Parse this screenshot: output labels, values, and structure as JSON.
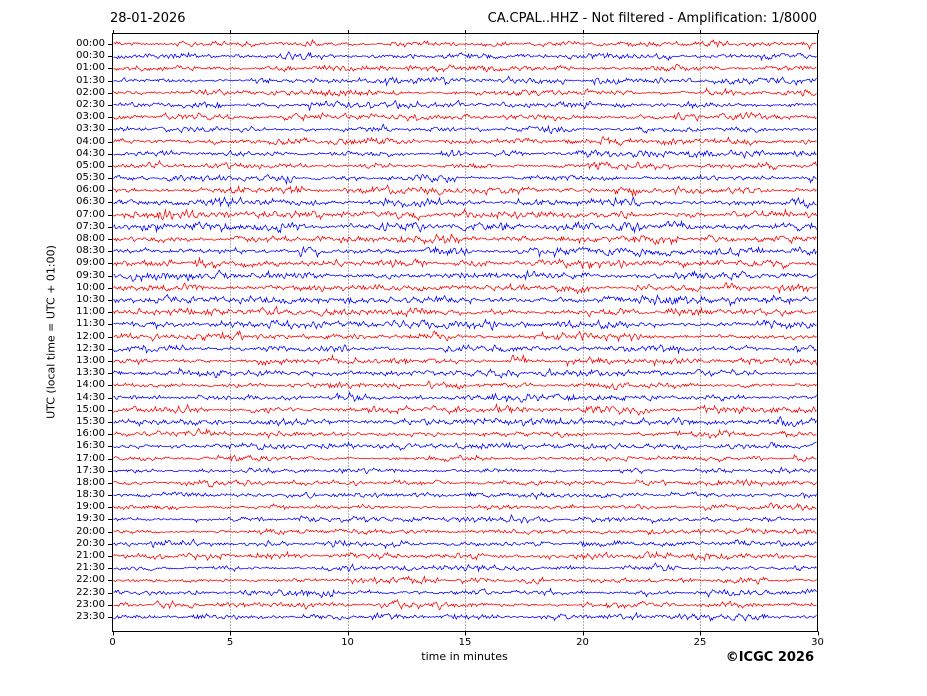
{
  "header": {
    "date": "28-01-2026",
    "title": "CA.CPAL..HHZ - Not filtered - Amplification: 1/8000"
  },
  "footer": {
    "copyright": "©ICGC 2026"
  },
  "chart_data": {
    "type": "line",
    "chart_kind": "helicorder-dayplot",
    "title": "CA.CPAL..HHZ - Not filtered - Amplification: 1/8000",
    "date": "28-01-2026",
    "station": "CA.CPAL..HHZ",
    "filter": "Not filtered",
    "amplification": "1/8000",
    "xlabel": "time in minutes",
    "ylabel": "UTC (local time = UTC + 01:00)",
    "xlim": [
      0,
      30
    ],
    "x_ticks": [
      0,
      5,
      10,
      15,
      20,
      25,
      30
    ],
    "grid": "vertical dotted gridlines every 5 minutes",
    "legend_position": "none",
    "row_minutes": 30,
    "description": "48 half-hour traces of continuous background seismic noise; no prominent events visible",
    "colors": {
      "red": "#ff0000",
      "blue": "#0000ff",
      "grid": "#555555",
      "frame": "#000000"
    },
    "rows": [
      {
        "time": "00:00",
        "color": "red",
        "amplitude": 1.0
      },
      {
        "time": "00:30",
        "color": "blue",
        "amplitude": 1.0
      },
      {
        "time": "01:00",
        "color": "red",
        "amplitude": 1.0
      },
      {
        "time": "01:30",
        "color": "blue",
        "amplitude": 1.0
      },
      {
        "time": "02:00",
        "color": "red",
        "amplitude": 1.0
      },
      {
        "time": "02:30",
        "color": "blue",
        "amplitude": 1.05
      },
      {
        "time": "03:00",
        "color": "red",
        "amplitude": 1.1
      },
      {
        "time": "03:30",
        "color": "blue",
        "amplitude": 1.0
      },
      {
        "time": "04:00",
        "color": "red",
        "amplitude": 1.0
      },
      {
        "time": "04:30",
        "color": "blue",
        "amplitude": 1.0
      },
      {
        "time": "05:00",
        "color": "red",
        "amplitude": 1.0
      },
      {
        "time": "05:30",
        "color": "blue",
        "amplitude": 1.0
      },
      {
        "time": "06:00",
        "color": "red",
        "amplitude": 1.2
      },
      {
        "time": "06:30",
        "color": "blue",
        "amplitude": 1.3
      },
      {
        "time": "07:00",
        "color": "red",
        "amplitude": 1.35
      },
      {
        "time": "07:30",
        "color": "blue",
        "amplitude": 1.35
      },
      {
        "time": "08:00",
        "color": "red",
        "amplitude": 1.3
      },
      {
        "time": "08:30",
        "color": "blue",
        "amplitude": 1.3
      },
      {
        "time": "09:00",
        "color": "red",
        "amplitude": 1.35
      },
      {
        "time": "09:30",
        "color": "blue",
        "amplitude": 1.3
      },
      {
        "time": "10:00",
        "color": "red",
        "amplitude": 1.2
      },
      {
        "time": "10:30",
        "color": "blue",
        "amplitude": 1.25
      },
      {
        "time": "11:00",
        "color": "red",
        "amplitude": 1.2
      },
      {
        "time": "11:30",
        "color": "blue",
        "amplitude": 1.2
      },
      {
        "time": "12:00",
        "color": "red",
        "amplitude": 1.15
      },
      {
        "time": "12:30",
        "color": "blue",
        "amplitude": 1.15
      },
      {
        "time": "13:00",
        "color": "red",
        "amplitude": 1.2
      },
      {
        "time": "13:30",
        "color": "blue",
        "amplitude": 1.15
      },
      {
        "time": "14:00",
        "color": "red",
        "amplitude": 1.1
      },
      {
        "time": "14:30",
        "color": "blue",
        "amplitude": 1.1
      },
      {
        "time": "15:00",
        "color": "red",
        "amplitude": 1.1
      },
      {
        "time": "15:30",
        "color": "blue",
        "amplitude": 1.05
      },
      {
        "time": "16:00",
        "color": "red",
        "amplitude": 1.0
      },
      {
        "time": "16:30",
        "color": "blue",
        "amplitude": 1.0
      },
      {
        "time": "17:00",
        "color": "red",
        "amplitude": 0.85
      },
      {
        "time": "17:30",
        "color": "blue",
        "amplitude": 0.85
      },
      {
        "time": "18:00",
        "color": "red",
        "amplitude": 0.85
      },
      {
        "time": "18:30",
        "color": "blue",
        "amplitude": 0.9
      },
      {
        "time": "19:00",
        "color": "red",
        "amplitude": 0.85
      },
      {
        "time": "19:30",
        "color": "blue",
        "amplitude": 0.85
      },
      {
        "time": "20:00",
        "color": "red",
        "amplitude": 0.9
      },
      {
        "time": "20:30",
        "color": "blue",
        "amplitude": 0.95
      },
      {
        "time": "21:00",
        "color": "red",
        "amplitude": 1.0
      },
      {
        "time": "21:30",
        "color": "blue",
        "amplitude": 1.0
      },
      {
        "time": "22:00",
        "color": "red",
        "amplitude": 1.0
      },
      {
        "time": "22:30",
        "color": "blue",
        "amplitude": 1.0
      },
      {
        "time": "23:00",
        "color": "red",
        "amplitude": 1.05
      },
      {
        "time": "23:30",
        "color": "blue",
        "amplitude": 1.0
      }
    ]
  }
}
